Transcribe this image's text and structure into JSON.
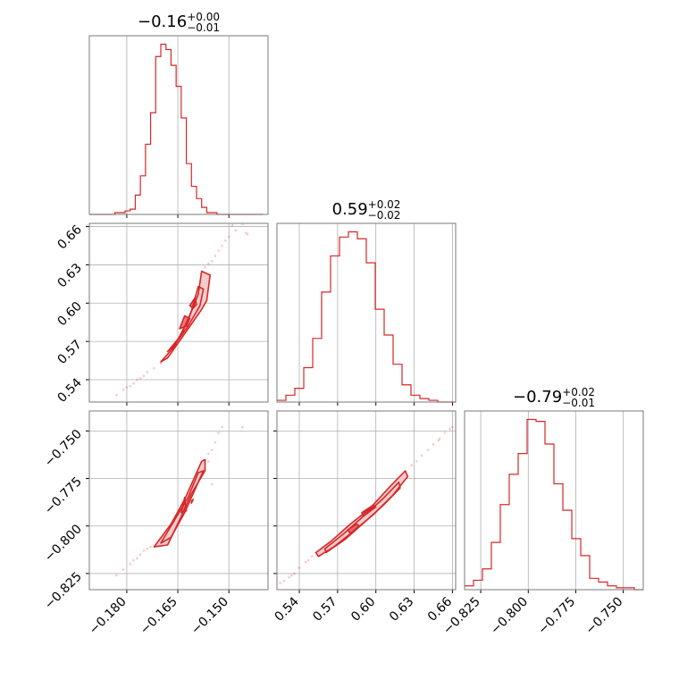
{
  "chart_data": {
    "type": "corner",
    "color": "#d62728",
    "fill_color": "#f4c6c6",
    "grid": true,
    "parameters": [
      {
        "id": "p0",
        "title": {
          "main": "−0.16",
          "sup": "+0.00",
          "sub": "−0.01"
        },
        "range": [
          -0.191,
          -0.1385
        ],
        "ticks": [
          {
            "value": -0.18,
            "label": "−0.180"
          },
          {
            "value": -0.165,
            "label": "−0.165"
          },
          {
            "value": -0.15,
            "label": "−0.150"
          }
        ],
        "histogram": {
          "bin_edges": [
            -0.191,
            -0.1895,
            -0.188,
            -0.1865,
            -0.185,
            -0.1835,
            -0.182,
            -0.1805,
            -0.179,
            -0.1775,
            -0.176,
            -0.1745,
            -0.173,
            -0.1715,
            -0.17,
            -0.1685,
            -0.167,
            -0.1655,
            -0.164,
            -0.1625,
            -0.161,
            -0.1595,
            -0.158,
            -0.1565,
            -0.155,
            -0.1535,
            -0.152,
            -0.1505,
            -0.149,
            -0.1475,
            -0.146,
            -0.1445,
            -0.143,
            -0.1415,
            -0.14
          ],
          "counts": [
            0,
            0,
            0,
            0,
            0,
            1,
            1,
            2,
            3,
            11,
            22,
            40,
            58,
            90,
            97,
            94,
            85,
            73,
            55,
            29,
            16,
            9,
            4,
            1,
            1,
            0,
            0,
            0,
            0,
            0,
            0,
            0,
            0,
            0
          ]
        }
      },
      {
        "id": "p1",
        "title": {
          "main": "0.59",
          "sup": "+0.02",
          "sub": "−0.02"
        },
        "range": [
          0.5225,
          0.6625
        ],
        "ticks": [
          {
            "value": 0.54,
            "label": "0.54"
          },
          {
            "value": 0.57,
            "label": "0.57"
          },
          {
            "value": 0.6,
            "label": "0.60"
          },
          {
            "value": 0.63,
            "label": "0.63"
          },
          {
            "value": 0.66,
            "label": "0.66"
          }
        ],
        "histogram": {
          "bin_edges": [
            0.5225,
            0.5295,
            0.5365,
            0.5435,
            0.5505,
            0.5575,
            0.5645,
            0.5715,
            0.5785,
            0.5855,
            0.5925,
            0.5995,
            0.6065,
            0.6135,
            0.6205,
            0.6275,
            0.6345,
            0.6415,
            0.6485,
            0.6555,
            0.6625
          ],
          "counts": [
            1,
            4,
            8,
            20,
            37,
            64,
            85,
            96,
            99,
            95,
            81,
            54,
            39,
            22,
            10,
            4,
            2,
            1,
            0,
            0
          ]
        }
      },
      {
        "id": "p2",
        "title": {
          "main": "−0.79",
          "sup": "+0.02",
          "sub": "−0.01"
        },
        "range": [
          -0.8335,
          -0.7395
        ],
        "ticks": [
          {
            "value": -0.825,
            "label": "−0.825"
          },
          {
            "value": -0.8,
            "label": "−0.800"
          },
          {
            "value": -0.775,
            "label": "−0.775"
          },
          {
            "value": -0.75,
            "label": "−0.750"
          }
        ],
        "histogram": {
          "bin_edges": [
            -0.8335,
            -0.8288,
            -0.8241,
            -0.8194,
            -0.8147,
            -0.81,
            -0.8053,
            -0.8006,
            -0.7959,
            -0.7912,
            -0.7865,
            -0.7818,
            -0.7771,
            -0.7724,
            -0.7677,
            -0.763,
            -0.7583,
            -0.7536,
            -0.7489,
            -0.7442,
            -0.7395
          ],
          "counts": [
            2,
            5,
            11,
            25,
            45,
            61,
            72,
            90,
            89,
            77,
            56,
            42,
            27,
            18,
            6,
            4,
            2,
            1,
            1,
            0
          ]
        }
      }
    ],
    "pairs": [
      {
        "x_param": 0,
        "y_param": 1,
        "samples": [
          [
            -0.183,
            0.528
          ],
          [
            -0.181,
            0.532
          ],
          [
            -0.18,
            0.534
          ],
          [
            -0.178,
            0.537
          ],
          [
            -0.177,
            0.54
          ],
          [
            -0.175,
            0.543
          ],
          [
            -0.174,
            0.546
          ],
          [
            -0.172,
            0.549
          ],
          [
            -0.155,
            0.633
          ],
          [
            -0.154,
            0.637
          ],
          [
            -0.153,
            0.641
          ],
          [
            -0.152,
            0.645
          ],
          [
            -0.15,
            0.652
          ],
          [
            -0.148,
            0.657
          ],
          [
            -0.146,
            0.662
          ],
          [
            -0.145,
            0.655
          ],
          [
            -0.149,
            0.661
          ],
          [
            -0.176,
            0.541
          ],
          [
            -0.179,
            0.535
          ],
          [
            -0.157,
            0.628
          ],
          [
            -0.156,
            0.631
          ],
          [
            -0.151,
            0.649
          ],
          [
            -0.1445,
            0.654
          ],
          [
            -0.17,
            0.553
          ],
          [
            -0.169,
            0.556
          ]
        ],
        "contours": [
          [
            [
              -0.17,
              0.554
            ],
            [
              -0.166,
              0.566
            ],
            [
              -0.162,
              0.587
            ],
            [
              -0.159,
              0.607
            ],
            [
              -0.158,
              0.625
            ],
            [
              -0.1555,
              0.622
            ],
            [
              -0.1565,
              0.602
            ],
            [
              -0.158,
              0.595
            ],
            [
              -0.163,
              0.576
            ],
            [
              -0.168,
              0.557
            ]
          ],
          [
            [
              -0.168,
              0.562
            ],
            [
              -0.164,
              0.575
            ],
            [
              -0.161,
              0.594
            ],
            [
              -0.159,
              0.613
            ],
            [
              -0.1575,
              0.611
            ],
            [
              -0.1585,
              0.598
            ],
            [
              -0.162,
              0.582
            ],
            [
              -0.166,
              0.567
            ]
          ],
          [
            [
              -0.1645,
              0.58
            ],
            [
              -0.163,
              0.59
            ],
            [
              -0.1615,
              0.588
            ],
            [
              -0.1625,
              0.582
            ]
          ],
          [
            [
              -0.1615,
              0.598
            ],
            [
              -0.16,
              0.604
            ],
            [
              -0.1595,
              0.599
            ],
            [
              -0.1605,
              0.596
            ]
          ]
        ]
      },
      {
        "x_param": 0,
        "y_param": 2,
        "samples": [
          [
            -0.183,
            -0.826
          ],
          [
            -0.181,
            -0.823
          ],
          [
            -0.179,
            -0.82
          ],
          [
            -0.178,
            -0.818
          ],
          [
            -0.176,
            -0.815
          ],
          [
            -0.175,
            -0.813
          ],
          [
            -0.177,
            -0.817
          ],
          [
            -0.157,
            -0.77
          ],
          [
            -0.156,
            -0.766
          ],
          [
            -0.155,
            -0.76
          ],
          [
            -0.154,
            -0.756
          ],
          [
            -0.153,
            -0.751
          ],
          [
            -0.152,
            -0.748
          ],
          [
            -0.146,
            -0.748
          ],
          [
            -0.155,
            -0.778
          ],
          [
            -0.156,
            -0.762
          ],
          [
            -0.174,
            -0.812
          ],
          [
            -0.173,
            -0.811
          ]
        ],
        "contours": [
          [
            [
              -0.172,
              -0.811
            ],
            [
              -0.167,
              -0.799
            ],
            [
              -0.163,
              -0.786
            ],
            [
              -0.16,
              -0.774
            ],
            [
              -0.158,
              -0.766
            ],
            [
              -0.157,
              -0.765
            ],
            [
              -0.157,
              -0.771
            ],
            [
              -0.161,
              -0.783
            ],
            [
              -0.164,
              -0.795
            ],
            [
              -0.168,
              -0.81
            ]
          ],
          [
            [
              -0.17,
              -0.809
            ],
            [
              -0.166,
              -0.797
            ],
            [
              -0.162,
              -0.785
            ],
            [
              -0.159,
              -0.772
            ],
            [
              -0.1575,
              -0.771
            ],
            [
              -0.16,
              -0.781
            ],
            [
              -0.163,
              -0.793
            ],
            [
              -0.167,
              -0.806
            ]
          ],
          [
            [
              -0.164,
              -0.793
            ],
            [
              -0.163,
              -0.785
            ],
            [
              -0.1625,
              -0.792
            ]
          ],
          [
            [
              -0.161,
              -0.788
            ],
            [
              -0.1605,
              -0.786
            ],
            [
              -0.161,
              -0.787
            ]
          ]
        ]
      },
      {
        "x_param": 1,
        "y_param": 2,
        "samples": [
          [
            0.525,
            -0.83
          ],
          [
            0.528,
            -0.829
          ],
          [
            0.532,
            -0.827
          ],
          [
            0.536,
            -0.825
          ],
          [
            0.54,
            -0.822
          ],
          [
            0.545,
            -0.819
          ],
          [
            0.55,
            -0.816
          ],
          [
            0.553,
            -0.814
          ],
          [
            0.628,
            -0.768
          ],
          [
            0.632,
            -0.766
          ],
          [
            0.636,
            -0.763
          ],
          [
            0.641,
            -0.76
          ],
          [
            0.645,
            -0.757
          ],
          [
            0.65,
            -0.754
          ],
          [
            0.654,
            -0.751
          ],
          [
            0.658,
            -0.749
          ],
          [
            0.66,
            -0.748
          ],
          [
            0.547,
            -0.818
          ],
          [
            0.534,
            -0.826
          ],
          [
            0.649,
            -0.755
          ]
        ],
        "contours": [
          [
            [
              0.553,
              -0.814
            ],
            [
              0.565,
              -0.808
            ],
            [
              0.58,
              -0.799
            ],
            [
              0.595,
              -0.791
            ],
            [
              0.61,
              -0.78
            ],
            [
              0.623,
              -0.771
            ],
            [
              0.625,
              -0.774
            ],
            [
              0.613,
              -0.784
            ],
            [
              0.598,
              -0.794
            ],
            [
              0.582,
              -0.803
            ],
            [
              0.567,
              -0.811
            ],
            [
              0.555,
              -0.816
            ]
          ],
          [
            [
              0.56,
              -0.812
            ],
            [
              0.575,
              -0.804
            ],
            [
              0.59,
              -0.795
            ],
            [
              0.605,
              -0.786
            ],
            [
              0.618,
              -0.777
            ],
            [
              0.619,
              -0.78
            ],
            [
              0.606,
              -0.789
            ],
            [
              0.591,
              -0.798
            ],
            [
              0.576,
              -0.807
            ],
            [
              0.561,
              -0.814
            ]
          ],
          [
            [
              0.58,
              -0.804
            ],
            [
              0.587,
              -0.8
            ],
            [
              0.585,
              -0.799
            ],
            [
              0.578,
              -0.802
            ]
          ],
          [
            [
              0.59,
              -0.795
            ],
            [
              0.6,
              -0.79
            ],
            [
              0.598,
              -0.789
            ],
            [
              0.589,
              -0.793
            ]
          ]
        ]
      }
    ]
  }
}
